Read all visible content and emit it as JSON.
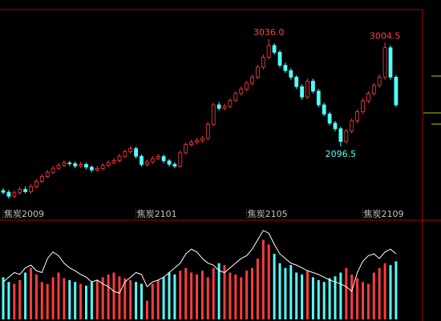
{
  "chart_data": [
    {
      "type": "candlestick",
      "categories": [
        "焦炭2009",
        null,
        null,
        null,
        null,
        null,
        null,
        null,
        null,
        null,
        null,
        null,
        null,
        null,
        null,
        null,
        null,
        null,
        null,
        null,
        null,
        null,
        null,
        null,
        "焦炭2101",
        null,
        null,
        null,
        null,
        null,
        null,
        null,
        null,
        null,
        null,
        null,
        null,
        null,
        null,
        null,
        null,
        null,
        null,
        null,
        "焦炭2105",
        null,
        null,
        null,
        null,
        null,
        null,
        null,
        null,
        null,
        null,
        null,
        null,
        null,
        null,
        null,
        null,
        null,
        null,
        null,
        null,
        "焦炭2109",
        null,
        null,
        null,
        null,
        null,
        null
      ],
      "open": [
        1710,
        1695,
        1660,
        1690,
        1720,
        1700,
        1745,
        1790,
        1834,
        1870,
        1905,
        1930,
        1952,
        1945,
        1925,
        1938,
        1915,
        1890,
        1903,
        1930,
        1955,
        1973,
        2010,
        2050,
        2077,
        2010,
        1938,
        1960,
        1990,
        2008,
        1970,
        1940,
        1924,
        2040,
        2112,
        2135,
        2150,
        2167,
        2290,
        2460,
        2430,
        2446,
        2500,
        2560,
        2599,
        2650,
        2703,
        2790,
        2877,
        2980,
        2920,
        2807,
        2760,
        2703,
        2620,
        2529,
        2668,
        2580,
        2460,
        2380,
        2300,
        2251,
        2140,
        2230,
        2321,
        2400,
        2495,
        2560,
        2630,
        2703,
        2960,
        2703
      ],
      "close": [
        1695,
        1660,
        1690,
        1720,
        1700,
        1745,
        1790,
        1834,
        1870,
        1905,
        1930,
        1952,
        1945,
        1925,
        1938,
        1915,
        1890,
        1903,
        1930,
        1955,
        1973,
        2010,
        2050,
        2077,
        2010,
        1938,
        1960,
        1990,
        2008,
        1970,
        1940,
        1924,
        2040,
        2112,
        2135,
        2150,
        2167,
        2290,
        2460,
        2430,
        2446,
        2500,
        2560,
        2599,
        2650,
        2703,
        2790,
        2877,
        2980,
        2920,
        2807,
        2760,
        2703,
        2620,
        2529,
        2668,
        2580,
        2460,
        2380,
        2300,
        2251,
        2140,
        2230,
        2321,
        2400,
        2495,
        2560,
        2630,
        2703,
        2960,
        2703,
        2460
      ],
      "high": [
        1730,
        1715,
        1710,
        1740,
        1745,
        1765,
        1810,
        1855,
        1890,
        1925,
        1950,
        1975,
        1970,
        1965,
        1960,
        1955,
        1930,
        1925,
        1950,
        1975,
        1995,
        2030,
        2070,
        2100,
        2095,
        2025,
        1980,
        2010,
        2030,
        2025,
        1985,
        1960,
        2060,
        2130,
        2155,
        2170,
        2190,
        2310,
        2480,
        2485,
        2470,
        2520,
        2580,
        2620,
        2670,
        2725,
        2810,
        2900,
        3036,
        3000,
        2940,
        2830,
        2780,
        2720,
        2640,
        2690,
        2690,
        2600,
        2480,
        2400,
        2320,
        2270,
        2250,
        2340,
        2420,
        2515,
        2580,
        2650,
        2725,
        3004.5,
        2980,
        2720
      ],
      "low": [
        1675,
        1640,
        1645,
        1675,
        1685,
        1685,
        1730,
        1775,
        1820,
        1855,
        1890,
        1915,
        1925,
        1905,
        1910,
        1895,
        1870,
        1875,
        1885,
        1915,
        1940,
        1955,
        1995,
        2030,
        1990,
        1920,
        1920,
        1945,
        1975,
        1950,
        1920,
        1905,
        1910,
        2025,
        2095,
        2115,
        2130,
        2150,
        2275,
        2410,
        2410,
        2430,
        2485,
        2540,
        2580,
        2630,
        2685,
        2770,
        2860,
        2900,
        2785,
        2740,
        2680,
        2600,
        2505,
        2510,
        2560,
        2440,
        2360,
        2280,
        2230,
        2096.5,
        2120,
        2210,
        2300,
        2380,
        2475,
        2540,
        2610,
        2680,
        2680,
        2440
      ],
      "high_value_labels": [
        null,
        null,
        null,
        null,
        null,
        null,
        null,
        null,
        null,
        null,
        null,
        null,
        null,
        null,
        null,
        null,
        null,
        null,
        null,
        null,
        null,
        null,
        null,
        null,
        null,
        null,
        null,
        null,
        null,
        null,
        null,
        null,
        null,
        null,
        null,
        null,
        null,
        null,
        null,
        null,
        null,
        null,
        null,
        null,
        null,
        null,
        null,
        null,
        "3036.0",
        null,
        null,
        null,
        null,
        null,
        null,
        null,
        null,
        null,
        null,
        null,
        null,
        null,
        null,
        null,
        null,
        null,
        null,
        null,
        null,
        "3004.5",
        null,
        null
      ],
      "low_value_labels": [
        null,
        null,
        null,
        null,
        null,
        null,
        null,
        null,
        null,
        null,
        null,
        null,
        null,
        null,
        null,
        null,
        null,
        null,
        null,
        null,
        null,
        null,
        null,
        null,
        null,
        null,
        null,
        null,
        null,
        null,
        null,
        null,
        null,
        null,
        null,
        null,
        null,
        null,
        null,
        null,
        null,
        null,
        null,
        null,
        null,
        null,
        null,
        null,
        null,
        null,
        null,
        null,
        null,
        null,
        null,
        null,
        null,
        null,
        null,
        null,
        null,
        "2096.5",
        null,
        null,
        null,
        null,
        null,
        null,
        null,
        null,
        null,
        null
      ],
      "ylim": [
        1500,
        3280
      ],
      "up_color": "#ff3c3c",
      "down_color": "#54fcfc"
    },
    {
      "type": "bar",
      "values": [
        45,
        40,
        38,
        42,
        50,
        55,
        48,
        40,
        38,
        45,
        50,
        44,
        42,
        40,
        38,
        36,
        40,
        42,
        45,
        48,
        50,
        46,
        44,
        42,
        40,
        38,
        20,
        38,
        42,
        45,
        50,
        48,
        52,
        55,
        50,
        48,
        52,
        45,
        55,
        60,
        58,
        50,
        48,
        45,
        52,
        55,
        65,
        85,
        80,
        70,
        60,
        55,
        58,
        50,
        48,
        52,
        45,
        42,
        40,
        44,
        46,
        50,
        55,
        48,
        44,
        40,
        38,
        50,
        55,
        60,
        58,
        62
      ],
      "ylim": [
        0,
        100
      ],
      "line": {
        "color": "#ffffff",
        "values": [
          40,
          45,
          50,
          48,
          55,
          58,
          52,
          50,
          65,
          72,
          68,
          60,
          55,
          52,
          48,
          45,
          40,
          42,
          38,
          35,
          30,
          28,
          40,
          45,
          50,
          48,
          35,
          40,
          42,
          45,
          50,
          55,
          60,
          70,
          75,
          72,
          65,
          60,
          58,
          52,
          50,
          55,
          60,
          65,
          68,
          75,
          85,
          95,
          92,
          80,
          70,
          65,
          60,
          58,
          55,
          52,
          50,
          48,
          45,
          42,
          40,
          38,
          35,
          30,
          50,
          62,
          68,
          70,
          65,
          72,
          75,
          70
        ]
      }
    }
  ]
}
